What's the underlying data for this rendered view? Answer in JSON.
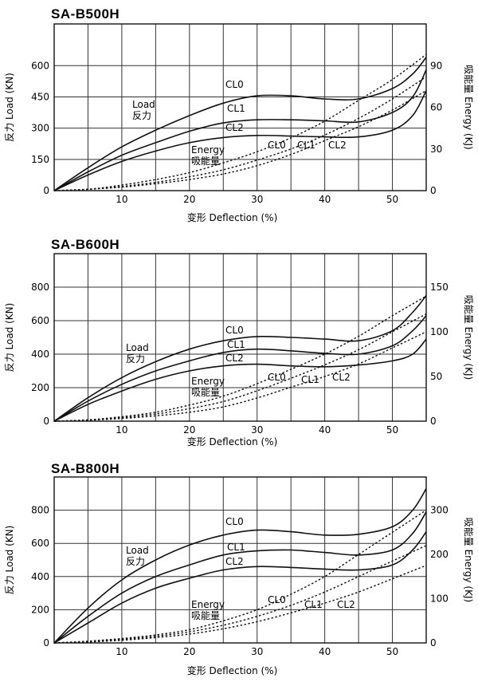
{
  "chart_data": [
    {
      "type": "line",
      "title": "SA-B500H",
      "xlabel": "变形 Deflection (%)",
      "ylabel": "反力 Load (KN)",
      "y2label": "吸能量 Energy (KJ)",
      "xlim": [
        0,
        55
      ],
      "x_ticks": [
        10,
        20,
        30,
        40,
        50
      ],
      "ylim": [
        0,
        800
      ],
      "y_ticks": [
        0,
        150,
        300,
        450,
        600
      ],
      "y2lim": [
        0,
        120
      ],
      "y2_ticks": [
        0,
        30,
        60,
        90
      ],
      "annotations": {
        "load_en": "Load",
        "load_cn": "反力",
        "energy_en": "Energy",
        "energy_cn": "吸能量"
      },
      "series": [
        {
          "name": "CL0",
          "kind": "load",
          "x": [
            0,
            5,
            10,
            15,
            20,
            25,
            30,
            35,
            40,
            45,
            50,
            53,
            55
          ],
          "values": [
            0,
            110,
            210,
            290,
            360,
            420,
            455,
            455,
            440,
            440,
            490,
            560,
            640
          ]
        },
        {
          "name": "CL1",
          "kind": "load",
          "x": [
            0,
            5,
            10,
            15,
            20,
            25,
            30,
            35,
            40,
            45,
            50,
            53,
            55
          ],
          "values": [
            0,
            90,
            170,
            230,
            285,
            325,
            340,
            340,
            335,
            330,
            375,
            450,
            580
          ]
        },
        {
          "name": "CL2",
          "kind": "load",
          "x": [
            0,
            5,
            10,
            15,
            20,
            25,
            30,
            35,
            40,
            45,
            50,
            53,
            55
          ],
          "values": [
            0,
            75,
            140,
            190,
            230,
            255,
            265,
            262,
            258,
            258,
            290,
            360,
            480
          ]
        },
        {
          "name": "CL0",
          "kind": "energy",
          "x": [
            0,
            5,
            10,
            15,
            20,
            25,
            30,
            35,
            40,
            45,
            50,
            55
          ],
          "values": [
            0,
            1,
            4,
            8,
            13,
            20,
            28,
            38,
            50,
            65,
            80,
            98
          ]
        },
        {
          "name": "CL1",
          "kind": "energy",
          "x": [
            0,
            5,
            10,
            15,
            20,
            25,
            30,
            35,
            40,
            45,
            50,
            55
          ],
          "values": [
            0,
            1,
            3,
            6,
            10,
            15,
            22,
            30,
            40,
            52,
            66,
            82
          ]
        },
        {
          "name": "CL2",
          "kind": "energy",
          "x": [
            0,
            5,
            10,
            15,
            20,
            25,
            30,
            35,
            40,
            45,
            50,
            55
          ],
          "values": [
            0,
            1,
            2.5,
            5,
            8,
            12,
            18,
            26,
            36,
            46,
            58,
            72
          ]
        }
      ]
    },
    {
      "type": "line",
      "title": "SA-B600H",
      "xlabel": "变形 Deflection (%)",
      "ylabel": "反力 Load (KN)",
      "y2label": "吸能量 Energy (KJ)",
      "xlim": [
        0,
        55
      ],
      "x_ticks": [
        10,
        20,
        30,
        40,
        50
      ],
      "ylim": [
        0,
        1000
      ],
      "y_ticks": [
        0,
        200,
        400,
        600,
        800
      ],
      "y2lim": [
        0,
        187.5
      ],
      "y2_ticks": [
        0,
        50,
        100,
        150
      ],
      "annotations": {
        "load_en": "Load",
        "load_cn": "反力",
        "energy_en": "Energy",
        "energy_cn": "吸能量"
      },
      "series": [
        {
          "name": "CL0",
          "kind": "load",
          "x": [
            0,
            5,
            10,
            15,
            20,
            25,
            30,
            35,
            40,
            45,
            50,
            53,
            55
          ],
          "values": [
            0,
            140,
            260,
            355,
            430,
            480,
            505,
            500,
            490,
            480,
            540,
            650,
            750
          ]
        },
        {
          "name": "CL1",
          "kind": "load",
          "x": [
            0,
            5,
            10,
            15,
            20,
            25,
            30,
            35,
            40,
            45,
            50,
            53,
            55
          ],
          "values": [
            0,
            120,
            220,
            300,
            360,
            410,
            430,
            420,
            405,
            400,
            450,
            540,
            630
          ]
        },
        {
          "name": "CL2",
          "kind": "load",
          "x": [
            0,
            5,
            10,
            15,
            20,
            25,
            30,
            35,
            40,
            45,
            50,
            53,
            55
          ],
          "values": [
            0,
            100,
            180,
            250,
            300,
            330,
            340,
            330,
            325,
            335,
            360,
            400,
            490
          ]
        },
        {
          "name": "CL0",
          "kind": "energy",
          "x": [
            0,
            5,
            10,
            15,
            20,
            25,
            30,
            35,
            40,
            45,
            50,
            55
          ],
          "values": [
            0,
            1.5,
            5,
            10,
            18,
            28,
            42,
            58,
            75,
            95,
            118,
            140
          ]
        },
        {
          "name": "CL1",
          "kind": "energy",
          "x": [
            0,
            5,
            10,
            15,
            20,
            25,
            30,
            35,
            40,
            45,
            50,
            55
          ],
          "values": [
            0,
            1.2,
            4,
            8,
            14,
            22,
            34,
            48,
            63,
            80,
            100,
            120
          ]
        },
        {
          "name": "CL2",
          "kind": "energy",
          "x": [
            0,
            5,
            10,
            15,
            20,
            25,
            30,
            35,
            40,
            45,
            50,
            55
          ],
          "values": [
            0,
            1,
            3,
            6,
            10,
            16,
            26,
            38,
            50,
            64,
            82,
            100
          ]
        }
      ]
    },
    {
      "type": "line",
      "title": "SA-B800H",
      "xlabel": "变形 Deflection (%)",
      "ylabel": "反力 Load (KN)",
      "y2label": "吸能量 Energy (KJ)",
      "xlim": [
        0,
        55
      ],
      "x_ticks": [
        10,
        20,
        30,
        40,
        50
      ],
      "ylim": [
        0,
        1000
      ],
      "y_ticks": [
        0,
        200,
        400,
        600,
        800
      ],
      "y2lim": [
        0,
        375
      ],
      "y2_ticks": [
        0,
        100,
        200,
        300
      ],
      "annotations": {
        "load_en": "Load",
        "load_cn": "反力",
        "energy_en": "Energy",
        "energy_cn": "吸能量"
      },
      "series": [
        {
          "name": "CL0",
          "kind": "load",
          "x": [
            0,
            5,
            10,
            15,
            20,
            25,
            30,
            35,
            40,
            45,
            50,
            53,
            55
          ],
          "values": [
            0,
            210,
            380,
            500,
            590,
            650,
            680,
            670,
            650,
            655,
            700,
            800,
            930
          ]
        },
        {
          "name": "CL1",
          "kind": "load",
          "x": [
            0,
            5,
            10,
            15,
            20,
            25,
            30,
            35,
            40,
            45,
            50,
            53,
            55
          ],
          "values": [
            0,
            160,
            300,
            400,
            470,
            530,
            555,
            560,
            545,
            530,
            560,
            660,
            790
          ]
        },
        {
          "name": "CL2",
          "kind": "load",
          "x": [
            0,
            5,
            10,
            15,
            20,
            25,
            30,
            35,
            40,
            45,
            50,
            53,
            55
          ],
          "values": [
            0,
            120,
            240,
            330,
            390,
            440,
            460,
            455,
            445,
            440,
            470,
            560,
            670
          ]
        },
        {
          "name": "CL0",
          "kind": "energy",
          "x": [
            0,
            5,
            10,
            15,
            20,
            25,
            30,
            35,
            40,
            45,
            50,
            55
          ],
          "values": [
            0,
            4,
            10,
            18,
            30,
            50,
            75,
            110,
            150,
            200,
            250,
            300
          ]
        },
        {
          "name": "CL1",
          "kind": "energy",
          "x": [
            0,
            5,
            10,
            15,
            20,
            25,
            30,
            35,
            40,
            45,
            50,
            55
          ],
          "values": [
            0,
            3,
            8,
            15,
            25,
            40,
            60,
            85,
            115,
            150,
            185,
            220
          ]
        },
        {
          "name": "CL2",
          "kind": "energy",
          "x": [
            0,
            5,
            10,
            15,
            20,
            25,
            30,
            35,
            40,
            45,
            50,
            55
          ],
          "values": [
            0,
            2,
            6,
            12,
            20,
            32,
            48,
            68,
            90,
            115,
            145,
            175
          ]
        }
      ]
    }
  ]
}
